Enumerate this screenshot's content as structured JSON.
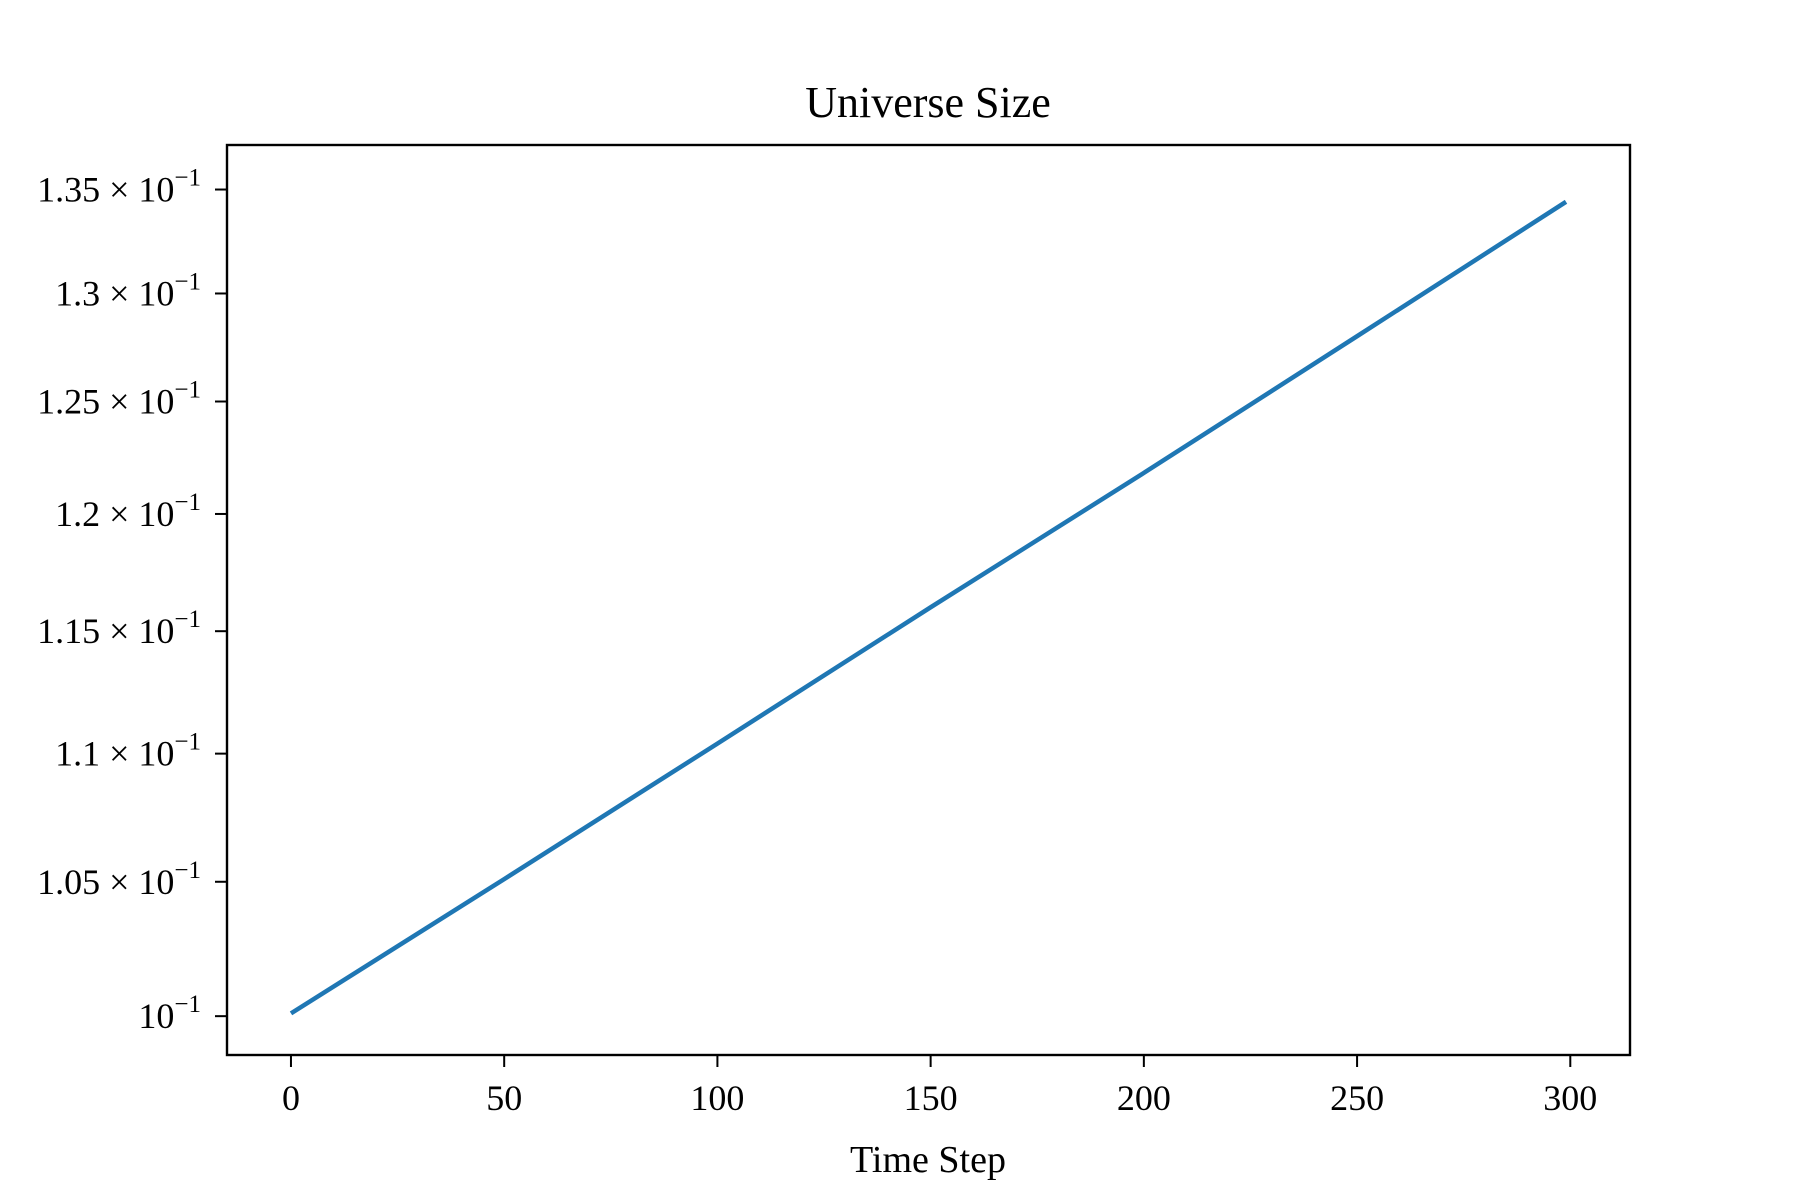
{
  "chart_data": {
    "type": "line",
    "title": "Universe Size",
    "xlabel": "Time Step",
    "ylabel": "",
    "y_scale": "log",
    "xlim": [
      -15,
      314
    ],
    "ylim": [
      0.0986,
      0.1372
    ],
    "grid": false,
    "legend": "none",
    "x_ticks": [
      {
        "value": 0,
        "label": "0"
      },
      {
        "value": 50,
        "label": "50"
      },
      {
        "value": 100,
        "label": "100"
      },
      {
        "value": 150,
        "label": "150"
      },
      {
        "value": 200,
        "label": "200"
      },
      {
        "value": 250,
        "label": "250"
      },
      {
        "value": 300,
        "label": "300"
      }
    ],
    "y_ticks": [
      {
        "value": 0.1,
        "mantissa": "",
        "exponent": "−1"
      },
      {
        "value": 0.105,
        "mantissa": "1.05",
        "exponent": "−1"
      },
      {
        "value": 0.11,
        "mantissa": "1.1",
        "exponent": "−1"
      },
      {
        "value": 0.115,
        "mantissa": "1.15",
        "exponent": "−1"
      },
      {
        "value": 0.12,
        "mantissa": "1.2",
        "exponent": "−1"
      },
      {
        "value": 0.125,
        "mantissa": "1.25",
        "exponent": "−1"
      },
      {
        "value": 0.13,
        "mantissa": "1.3",
        "exponent": "−1"
      },
      {
        "value": 0.135,
        "mantissa": "1.35",
        "exponent": "−1"
      }
    ],
    "series": [
      {
        "color": "#1f77b4",
        "x": [
          0,
          50,
          100,
          150,
          200,
          250,
          299
        ],
        "y": [
          0.1001,
          0.1051,
          0.1104,
          0.116,
          0.1218,
          0.128,
          0.1344
        ]
      }
    ]
  }
}
